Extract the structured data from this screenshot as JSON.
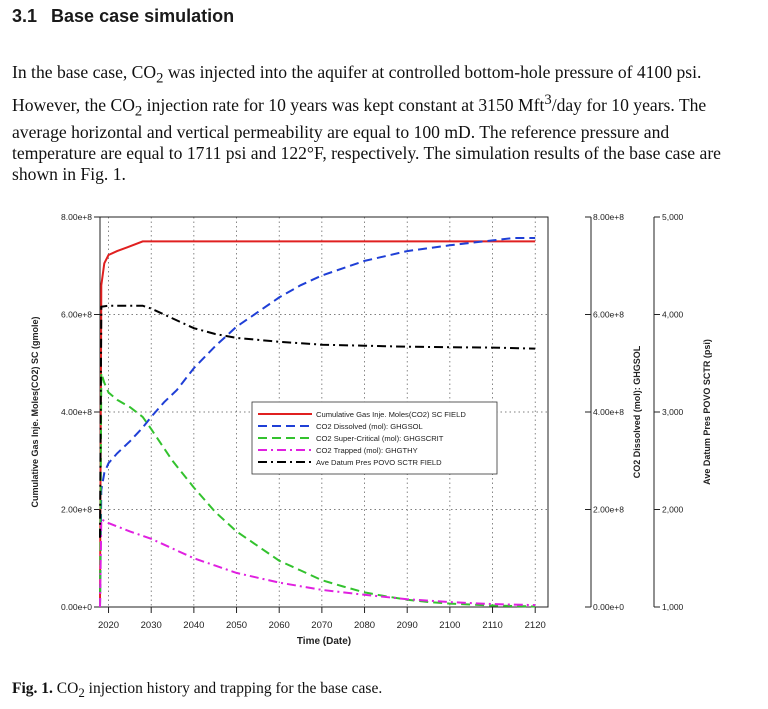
{
  "section": {
    "number": "3.1",
    "title": "Base case simulation"
  },
  "paragraph": {
    "p1": "In the base case, CO",
    "p2": " was injected into the aquifer at controlled bottom-hole pressure of 4100 psi. However, the CO",
    "p3": " injection rate for 10 years was kept constant at 3150 Mft",
    "p4": "/day for 10 years. The average horizontal and vertical permeability are equal to 100 mD. The reference pressure and temperature are equal to 1711 psi and 122°F, respectively. The simulation results of the base case are shown in Fig. 1.",
    "sub2": "2",
    "sup3": "3"
  },
  "caption": {
    "label": "Fig. 1.",
    "text_a": " CO",
    "sub": "2",
    "text_b": " injection history and trapping for the base case."
  },
  "chart_data": {
    "type": "line",
    "xlabel": "Time (Date)",
    "x_ticks": [
      "2020",
      "2030",
      "2040",
      "2050",
      "2060",
      "2070",
      "2080",
      "2090",
      "2100",
      "2110",
      "2120"
    ],
    "xlim": [
      2018,
      2123
    ],
    "left_axis": {
      "label": "Cumulative Gas Inje. Moles(CO2) SC (gmole)",
      "ticks": [
        "0.00e+0",
        "2.00e+8",
        "4.00e+8",
        "6.00e+8",
        "8.00e+8"
      ],
      "ylim": [
        0,
        800000000.0
      ]
    },
    "right_axis_1": {
      "label": "CO2 Dissolved (mol): GHGSOL",
      "ticks": [
        "0.00e+0",
        "2.00e+8",
        "4.00e+8",
        "6.00e+8",
        "8.00e+8"
      ],
      "ylim": [
        0,
        800000000.0
      ]
    },
    "right_axis_2": {
      "label": "Ave Datum Pres POVO SCTR (psi)",
      "ticks": [
        "1,000",
        "2,000",
        "3,000",
        "4,000",
        "5,000"
      ],
      "ylim": [
        1000,
        5000
      ]
    },
    "grid": true,
    "legend_position": "center",
    "series": [
      {
        "name": "Cumulative Gas Inje. Moles(CO2) SC FIELD",
        "color": "#e02020",
        "dash": "solid",
        "axis": "left",
        "x": [
          2018.0,
          2018.3,
          2019,
          2020,
          2022,
          2025,
          2028,
          2030,
          2060,
          2090,
          2120
        ],
        "y": [
          0,
          660000000.0,
          705000000.0,
          722000000.0,
          730000000.0,
          740000000.0,
          750000000.0,
          750000000.0,
          750000000.0,
          750000000.0,
          750000000.0
        ]
      },
      {
        "name": "CO2 Dissolved (mol): GHGSOL",
        "color": "#1f3fd6",
        "dash": "dashed",
        "axis": "right_1",
        "x": [
          2018.0,
          2018.3,
          2019,
          2020,
          2022,
          2025,
          2028,
          2030,
          2033,
          2036,
          2040,
          2045,
          2050,
          2055,
          2060,
          2065,
          2070,
          2075,
          2080,
          2085,
          2090,
          2095,
          2100,
          2105,
          2110,
          2115,
          2120
        ],
        "y": [
          0,
          240000000.0,
          275000000.0,
          295000000.0,
          315000000.0,
          340000000.0,
          368000000.0,
          390000000.0,
          420000000.0,
          445000000.0,
          490000000.0,
          535000000.0,
          575000000.0,
          605000000.0,
          635000000.0,
          660000000.0,
          680000000.0,
          695000000.0,
          710000000.0,
          720000000.0,
          730000000.0,
          736000000.0,
          742000000.0,
          747000000.0,
          752000000.0,
          757000000.0,
          757000000.0
        ]
      },
      {
        "name": "CO2 Super-Critical (mol): GHGSCRIT",
        "color": "#33c22e",
        "dash": "dashed",
        "axis": "right_1",
        "x": [
          2018.0,
          2018.3,
          2019,
          2020,
          2022,
          2025,
          2028,
          2030,
          2035,
          2040,
          2045,
          2050,
          2055,
          2060,
          2065,
          2070,
          2075,
          2080,
          2085,
          2090,
          2095,
          2100,
          2105,
          2110,
          2115,
          2120
        ],
        "y": [
          0,
          480000000.0,
          460000000.0,
          440000000.0,
          425000000.0,
          410000000.0,
          390000000.0,
          365000000.0,
          300000000.0,
          245000000.0,
          195000000.0,
          155000000.0,
          125000000.0,
          95000000.0,
          75000000.0,
          55000000.0,
          42000000.0,
          30000000.0,
          22000000.0,
          15000000.0,
          10000000.0,
          7000000.0,
          5000000.0,
          3000000.0,
          2000000.0,
          1000000.0
        ]
      },
      {
        "name": "CO2 Trapped (mol): GHGTHY",
        "color": "#e020e0",
        "dash": "dashdot",
        "axis": "right_1",
        "x": [
          2018.0,
          2018.3,
          2020,
          2025,
          2030,
          2035,
          2040,
          2045,
          2050,
          2055,
          2060,
          2070,
          2080,
          2090,
          2100,
          2110,
          2120
        ],
        "y": [
          0,
          180000000.0,
          172000000.0,
          155000000.0,
          140000000.0,
          120000000.0,
          100000000.0,
          85000000.0,
          70000000.0,
          60000000.0,
          50000000.0,
          35000000.0,
          25000000.0,
          16000000.0,
          10000000.0,
          6000000.0,
          4000000.0
        ]
      },
      {
        "name": "Ave Datum Pres POVO SCTR FIELD",
        "color": "#000000",
        "dash": "dashdot",
        "axis": "right_2",
        "x": [
          2018,
          2018.3,
          2020,
          2028,
          2030,
          2035,
          2040,
          2045,
          2050,
          2060,
          2070,
          2080,
          2090,
          2100,
          2110,
          2120
        ],
        "y": [
          1711,
          4080,
          4090,
          4090,
          4060,
          3960,
          3860,
          3800,
          3760,
          3720,
          3690,
          3680,
          3670,
          3665,
          3660,
          3650
        ]
      }
    ]
  }
}
